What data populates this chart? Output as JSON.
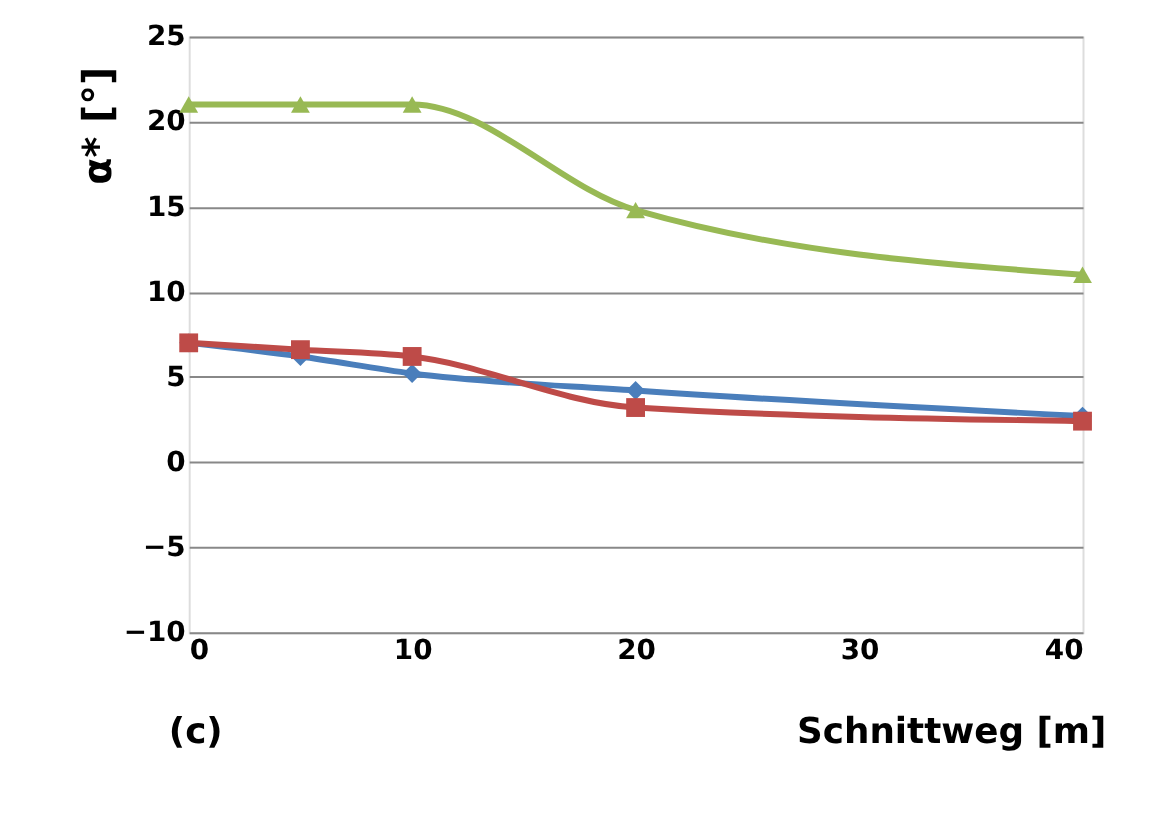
{
  "chart_data": {
    "type": "line",
    "xlabel": "Schnittweg [m]",
    "ylabel": "α* [°]",
    "x": [
      0,
      5,
      10,
      20,
      40
    ],
    "series": [
      {
        "color": "#4a7ebb",
        "marker": "diamond",
        "values": [
          7,
          6.2,
          5.2,
          4.2,
          2.7
        ]
      },
      {
        "color": "#be4b48",
        "marker": "square",
        "values": [
          7,
          6.6,
          6.2,
          3.2,
          2.4
        ]
      },
      {
        "color": "#98b954",
        "marker": "triangle",
        "values": [
          21,
          21,
          21,
          14.8,
          11
        ]
      }
    ],
    "xlim": [
      0,
      40
    ],
    "xticks": [
      0,
      10,
      20,
      30,
      40
    ],
    "ylim": [
      -10,
      25
    ],
    "yticks": [
      -10,
      -5,
      0,
      5,
      10,
      15,
      20,
      25
    ],
    "grid": "y",
    "line_style": "solid",
    "annotations": [
      "(c)"
    ]
  }
}
